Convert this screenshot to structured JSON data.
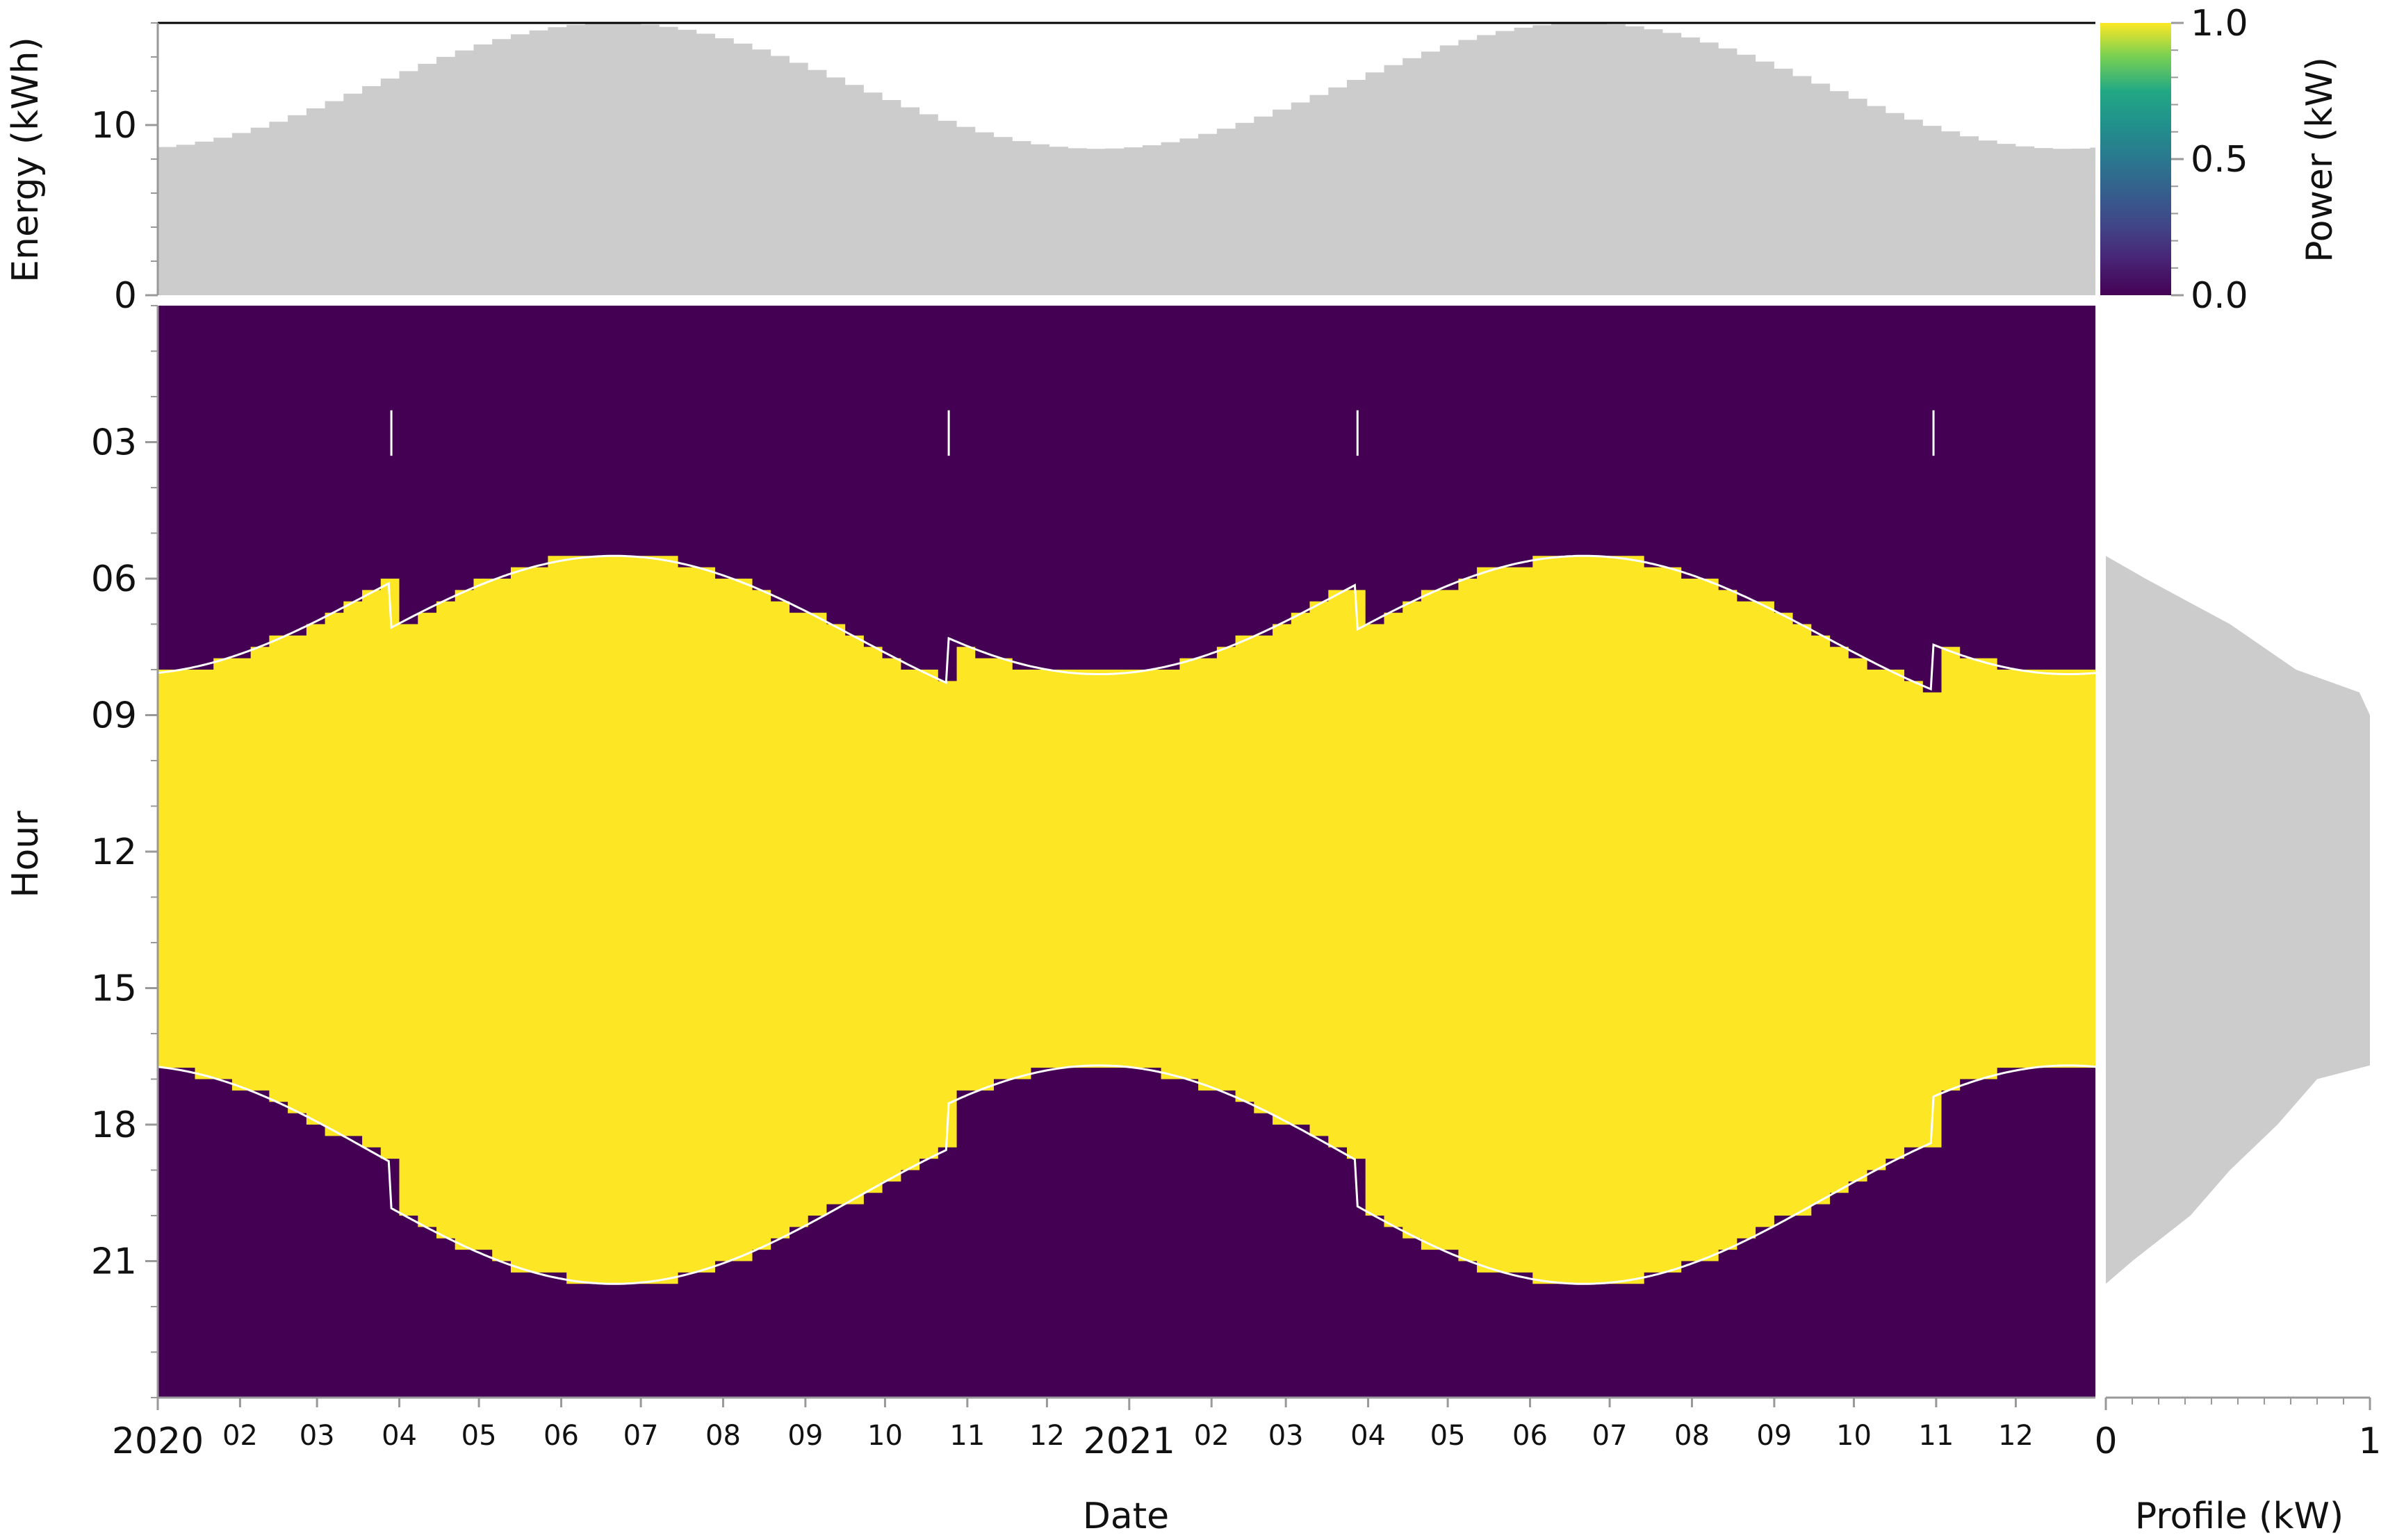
{
  "chart_data": [
    {
      "type": "area",
      "panel": "daily-energy",
      "ylabel": "Energy (kWh)",
      "ylim": [
        0,
        16
      ],
      "y_ticks": [
        "0",
        "10"
      ],
      "x_range": [
        "2020-01-01",
        "2021-12-31"
      ],
      "step": "weekly",
      "fill_color": "#cccccc",
      "daily_energy_kwh": {
        "min": 8.5,
        "max": 16.0,
        "peak_months": [
          "2020-06",
          "2021-06"
        ],
        "trough_months": [
          "2020-12",
          "2021-12"
        ]
      }
    },
    {
      "type": "heatmap",
      "panel": "hourly-power",
      "xlabel": "Date",
      "ylabel": "Hour",
      "y_ticks": [
        "03",
        "06",
        "09",
        "12",
        "15",
        "18",
        "21"
      ],
      "x_ticks": [
        "2020",
        "02",
        "03",
        "04",
        "05",
        "06",
        "07",
        "08",
        "09",
        "10",
        "11",
        "12",
        "2021",
        "02",
        "03",
        "04",
        "05",
        "06",
        "07",
        "08",
        "09",
        "10",
        "11",
        "12"
      ],
      "colormap": "viridis",
      "value_range_kw": [
        0.0,
        1.0
      ],
      "on_value_kw": 1.0,
      "off_value_kw": 0.0,
      "sunrise_hour": {
        "earliest": 5.5,
        "latest": 8.1,
        "winter": 8.1,
        "summer": 5.5
      },
      "sunset_hour": {
        "earliest": 16.7,
        "latest": 21.5,
        "winter": 16.7,
        "summer": 21.5
      },
      "dst_shift_dates": [
        "2020-03-29",
        "2020-10-25",
        "2021-03-28",
        "2021-10-31"
      ],
      "dst_shift_hours": 1,
      "marker_hour_range": [
        2.3,
        3.3
      ],
      "curve_color": "#ffffff",
      "on_color": "#fde725",
      "off_color": "#440154"
    },
    {
      "type": "area",
      "panel": "hourly-profile",
      "xlabel": "Profile (kW)",
      "x_ticks": [
        "0",
        "1"
      ],
      "xlim": [
        0,
        1
      ],
      "fill_color": "#cccccc",
      "profile": [
        {
          "hour": 5.5,
          "kw": 0.0
        },
        {
          "hour": 6.0,
          "kw": 0.15
        },
        {
          "hour": 7.0,
          "kw": 0.47
        },
        {
          "hour": 8.0,
          "kw": 0.72
        },
        {
          "hour": 8.5,
          "kw": 0.96
        },
        {
          "hour": 9.0,
          "kw": 1.0
        },
        {
          "hour": 16.7,
          "kw": 1.0
        },
        {
          "hour": 17.0,
          "kw": 0.8
        },
        {
          "hour": 18.0,
          "kw": 0.65
        },
        {
          "hour": 19.0,
          "kw": 0.47
        },
        {
          "hour": 20.0,
          "kw": 0.32
        },
        {
          "hour": 21.0,
          "kw": 0.1
        },
        {
          "hour": 21.5,
          "kw": 0.0
        }
      ]
    },
    {
      "type": "colorbar",
      "panel": "colorbar",
      "label": "Power (kW)",
      "ticks": [
        "0.0",
        "0.5",
        "1.0"
      ],
      "range": [
        0.0,
        1.0
      ],
      "colormap": "viridis"
    }
  ]
}
